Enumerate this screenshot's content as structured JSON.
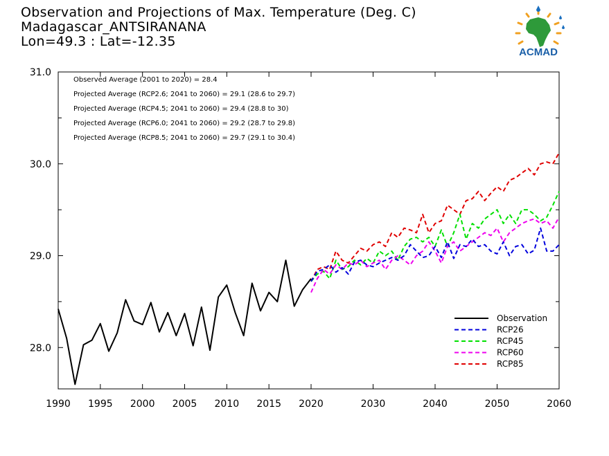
{
  "header": {
    "line1": "Observation and Projections of Max. Temperature (Deg. C)",
    "line2": "Madagascar_ANTSIRANANA",
    "line3": "Lon=49.3 : Lat=-12.35"
  },
  "logo": {
    "text": "ACMAD",
    "icon": "africa-logo-icon",
    "colors": {
      "text": "#1a5fa8",
      "africa": "#2e9a3a",
      "drops": "#1a6fc0",
      "rays": "#f0a020"
    }
  },
  "chart_data": {
    "type": "line",
    "xlim": [
      1990,
      2060
    ],
    "ylim": [
      27.55,
      31.0
    ],
    "x_ticks": [
      {
        "value": 1990,
        "label": "1990"
      },
      {
        "value": 1995,
        "label": "1995"
      },
      {
        "value": 2000,
        "label": "2000"
      },
      {
        "value": 2005,
        "label": "2005"
      },
      {
        "value": 2010,
        "label": "2010"
      },
      {
        "value": 2015,
        "label": "2015"
      },
      {
        "value": 2020,
        "label": "2020"
      },
      {
        "value": 2030,
        "label": "2030"
      },
      {
        "value": 2040,
        "label": "2040"
      },
      {
        "value": 2050,
        "label": "2050"
      },
      {
        "value": 2060,
        "label": "2060"
      }
    ],
    "y_ticks": [
      {
        "value": 28.0,
        "label": "28.0"
      },
      {
        "value": 29.0,
        "label": "29.0"
      },
      {
        "value": 30.0,
        "label": "30.0"
      },
      {
        "value": 31.0,
        "label": "31.0"
      }
    ],
    "annotations": [
      "Observed Average (2001 to 2020) = 28.4",
      "Projected Average (RCP2.6; 2041 to 2060) = 29.1 (28.6 to 29.7)",
      "Projected Average (RCP4.5; 2041 to 2060) = 29.4 (28.8 to 30)",
      "Projected Average (RCP6.0; 2041 to 2060) = 29.2 (28.7 to 29.8)",
      "Projected Average (RCP8.5; 2041 to 2060) = 29.7 (29.1 to 30.4)"
    ],
    "legend_position": "bottom-right",
    "series": [
      {
        "name": "Observation",
        "color": "#000000",
        "dashed": false,
        "x": [
          1990,
          1991,
          1992,
          1993,
          1994,
          1995,
          1996,
          1997,
          1998,
          1999,
          2000,
          2001,
          2002,
          2003,
          2004,
          2005,
          2006,
          2007,
          2008,
          2009,
          2010,
          2011,
          2012,
          2013,
          2014,
          2015,
          2016,
          2017,
          2018,
          2019,
          2020
        ],
        "values": [
          28.42,
          28.1,
          27.6,
          28.03,
          28.08,
          28.26,
          27.96,
          28.16,
          28.52,
          28.29,
          28.25,
          28.49,
          28.17,
          28.38,
          28.13,
          28.37,
          28.02,
          28.44,
          27.97,
          28.55,
          28.68,
          28.38,
          28.13,
          28.7,
          28.4,
          28.6,
          28.5,
          28.95,
          28.45,
          28.63,
          28.75
        ]
      },
      {
        "name": "RCP26",
        "color": "#0000dd",
        "dashed": true,
        "x": [
          2020,
          2021,
          2022,
          2023,
          2024,
          2025,
          2026,
          2027,
          2028,
          2029,
          2030,
          2031,
          2032,
          2033,
          2034,
          2035,
          2036,
          2037,
          2038,
          2039,
          2040,
          2041,
          2042,
          2043,
          2044,
          2045,
          2046,
          2047,
          2048,
          2049,
          2050,
          2051,
          2052,
          2053,
          2054,
          2055,
          2056,
          2057,
          2058,
          2059,
          2060
        ],
        "values": [
          28.72,
          28.83,
          28.85,
          28.9,
          28.82,
          28.87,
          28.8,
          28.93,
          28.95,
          28.9,
          28.88,
          28.92,
          28.95,
          28.98,
          28.95,
          29.0,
          29.12,
          29.05,
          28.98,
          29.0,
          29.1,
          28.98,
          29.15,
          28.97,
          29.12,
          29.1,
          29.18,
          29.1,
          29.12,
          29.05,
          29.02,
          29.15,
          29.0,
          29.1,
          29.12,
          29.02,
          29.06,
          29.3,
          29.05,
          29.05,
          29.12
        ]
      },
      {
        "name": "RCP45",
        "color": "#00e000",
        "dashed": true,
        "x": [
          2020,
          2021,
          2022,
          2023,
          2024,
          2025,
          2026,
          2027,
          2028,
          2029,
          2030,
          2031,
          2032,
          2033,
          2034,
          2035,
          2036,
          2037,
          2038,
          2039,
          2040,
          2041,
          2042,
          2043,
          2044,
          2045,
          2046,
          2047,
          2048,
          2049,
          2050,
          2051,
          2052,
          2053,
          2054,
          2055,
          2056,
          2057,
          2058,
          2059,
          2060
        ],
        "values": [
          28.72,
          28.8,
          28.83,
          28.75,
          28.95,
          28.85,
          28.88,
          28.95,
          28.9,
          28.97,
          28.92,
          29.05,
          29.0,
          29.05,
          28.95,
          29.1,
          29.18,
          29.2,
          29.15,
          29.2,
          29.1,
          29.28,
          29.1,
          29.25,
          29.45,
          29.18,
          29.35,
          29.3,
          29.4,
          29.45,
          29.5,
          29.35,
          29.45,
          29.35,
          29.5,
          29.5,
          29.45,
          29.38,
          29.42,
          29.55,
          29.7
        ]
      },
      {
        "name": "RCP60",
        "color": "#ee00ee",
        "dashed": true,
        "x": [
          2020,
          2021,
          2022,
          2023,
          2024,
          2025,
          2026,
          2027,
          2028,
          2029,
          2030,
          2031,
          2032,
          2033,
          2034,
          2035,
          2036,
          2037,
          2038,
          2039,
          2040,
          2041,
          2042,
          2043,
          2044,
          2045,
          2046,
          2047,
          2048,
          2049,
          2050,
          2051,
          2052,
          2053,
          2054,
          2055,
          2056,
          2057,
          2058,
          2059,
          2060
        ],
        "values": [
          28.6,
          28.75,
          28.85,
          28.8,
          28.9,
          28.85,
          28.92,
          28.9,
          28.95,
          28.88,
          28.92,
          28.95,
          28.85,
          28.95,
          29.0,
          28.95,
          28.9,
          29.0,
          29.05,
          29.15,
          29.05,
          28.92,
          29.1,
          29.15,
          29.05,
          29.1,
          29.15,
          29.2,
          29.25,
          29.22,
          29.3,
          29.15,
          29.25,
          29.3,
          29.35,
          29.38,
          29.4,
          29.35,
          29.38,
          29.3,
          29.42
        ]
      },
      {
        "name": "RCP85",
        "color": "#e00000",
        "dashed": true,
        "x": [
          2020,
          2021,
          2022,
          2023,
          2024,
          2025,
          2026,
          2027,
          2028,
          2029,
          2030,
          2031,
          2032,
          2033,
          2034,
          2035,
          2036,
          2037,
          2038,
          2039,
          2040,
          2041,
          2042,
          2043,
          2044,
          2045,
          2046,
          2047,
          2048,
          2049,
          2050,
          2051,
          2052,
          2053,
          2054,
          2055,
          2056,
          2057,
          2058,
          2059,
          2060
        ],
        "values": [
          28.72,
          28.85,
          28.88,
          28.85,
          29.05,
          28.95,
          28.92,
          29.0,
          29.08,
          29.05,
          29.12,
          29.15,
          29.1,
          29.25,
          29.2,
          29.3,
          29.28,
          29.25,
          29.45,
          29.25,
          29.35,
          29.38,
          29.55,
          29.5,
          29.45,
          29.6,
          29.62,
          29.7,
          29.6,
          29.68,
          29.75,
          29.7,
          29.82,
          29.85,
          29.9,
          29.95,
          29.88,
          30.0,
          30.02,
          30.0,
          30.12
        ]
      }
    ]
  }
}
